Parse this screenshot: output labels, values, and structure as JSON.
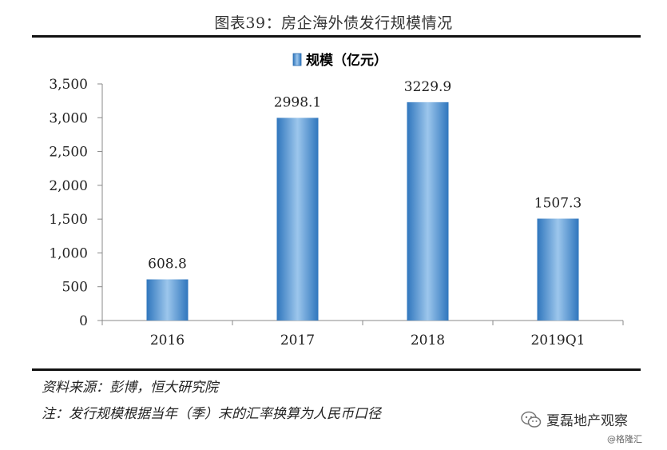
{
  "title": "图表39：房企海外债发行规模情况",
  "chart_data": {
    "type": "bar",
    "categories": [
      "2016",
      "2017",
      "2018",
      "2019Q1"
    ],
    "series": [
      {
        "name": "规模（亿元）",
        "values": [
          608.8,
          2998.1,
          3229.9,
          1507.3
        ]
      }
    ],
    "data_labels": [
      "608.8",
      "2998.1",
      "3229.9",
      "1507.3"
    ],
    "ylim": [
      0,
      3500
    ],
    "yticks": [
      0,
      500,
      1000,
      1500,
      2000,
      2500,
      3000,
      3500
    ],
    "ytick_labels": [
      "0",
      "500",
      "1,000",
      "1,500",
      "2,000",
      "2,500",
      "3,000",
      "3,500"
    ],
    "legend_position": "top-center",
    "grid": false,
    "bar_color": "#3f86c9"
  },
  "source": "资料来源：彭博，恒大研究院",
  "footnote": "注：发行规模根据当年（季）末的汇率换算为人民币口径",
  "watermark": {
    "text": "夏磊地产观察",
    "icon": "wechat-icon",
    "credit": "@格隆汇"
  }
}
